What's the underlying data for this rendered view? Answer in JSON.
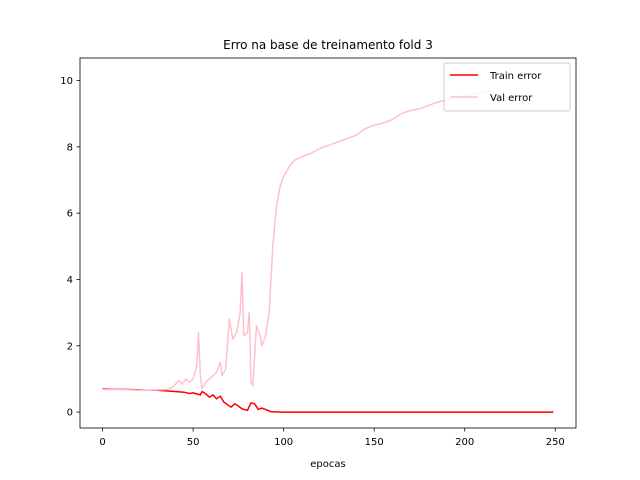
{
  "chart_data": {
    "type": "line",
    "title": "Erro na base de treinamento fold 3",
    "xlabel": "epocas",
    "ylabel": "",
    "xlim": [
      -12.45,
      261.45
    ],
    "ylim": [
      -0.48,
      10.68
    ],
    "xticks": [
      0,
      50,
      100,
      150,
      200,
      250
    ],
    "yticks": [
      0,
      2,
      4,
      6,
      8,
      10
    ],
    "grid": false,
    "legend_position": "top-right",
    "series": [
      {
        "name": "Train error",
        "color": "#ff0000",
        "points": [
          [
            0,
            0.7
          ],
          [
            5,
            0.69
          ],
          [
            10,
            0.69
          ],
          [
            15,
            0.68
          ],
          [
            20,
            0.67
          ],
          [
            25,
            0.66
          ],
          [
            30,
            0.66
          ],
          [
            35,
            0.64
          ],
          [
            40,
            0.62
          ],
          [
            45,
            0.6
          ],
          [
            48,
            0.56
          ],
          [
            50,
            0.58
          ],
          [
            52,
            0.55
          ],
          [
            54,
            0.52
          ],
          [
            55,
            0.62
          ],
          [
            57,
            0.55
          ],
          [
            59,
            0.45
          ],
          [
            61,
            0.52
          ],
          [
            63,
            0.4
          ],
          [
            65,
            0.48
          ],
          [
            67,
            0.3
          ],
          [
            69,
            0.22
          ],
          [
            71,
            0.15
          ],
          [
            73,
            0.25
          ],
          [
            75,
            0.18
          ],
          [
            77,
            0.1
          ],
          [
            80,
            0.05
          ],
          [
            82,
            0.28
          ],
          [
            84,
            0.25
          ],
          [
            86,
            0.08
          ],
          [
            88,
            0.12
          ],
          [
            90,
            0.08
          ],
          [
            93,
            0.01
          ],
          [
            100,
            0.0
          ],
          [
            150,
            0.0
          ],
          [
            200,
            0.0
          ],
          [
            249,
            0.0
          ]
        ]
      },
      {
        "name": "Val error",
        "color": "#ffc0cb",
        "points": [
          [
            0,
            0.68
          ],
          [
            5,
            0.68
          ],
          [
            10,
            0.68
          ],
          [
            15,
            0.67
          ],
          [
            20,
            0.66
          ],
          [
            25,
            0.66
          ],
          [
            30,
            0.67
          ],
          [
            35,
            0.68
          ],
          [
            38,
            0.72
          ],
          [
            40,
            0.82
          ],
          [
            42,
            0.95
          ],
          [
            44,
            0.85
          ],
          [
            46,
            1.0
          ],
          [
            48,
            0.9
          ],
          [
            50,
            1.0
          ],
          [
            52,
            1.4
          ],
          [
            53,
            2.4
          ],
          [
            54,
            1.1
          ],
          [
            55,
            0.7
          ],
          [
            57,
            0.9
          ],
          [
            59,
            1.0
          ],
          [
            61,
            1.1
          ],
          [
            63,
            1.2
          ],
          [
            65,
            1.5
          ],
          [
            66,
            1.1
          ],
          [
            68,
            1.3
          ],
          [
            70,
            2.8
          ],
          [
            72,
            2.2
          ],
          [
            74,
            2.4
          ],
          [
            76,
            3.0
          ],
          [
            77,
            4.2
          ],
          [
            78,
            2.3
          ],
          [
            80,
            2.4
          ],
          [
            81,
            3.0
          ],
          [
            82,
            0.9
          ],
          [
            83,
            0.8
          ],
          [
            85,
            2.6
          ],
          [
            87,
            2.3
          ],
          [
            88,
            2.0
          ],
          [
            90,
            2.3
          ],
          [
            92,
            3.0
          ],
          [
            94,
            5.0
          ],
          [
            96,
            6.2
          ],
          [
            98,
            6.8
          ],
          [
            100,
            7.1
          ],
          [
            103,
            7.4
          ],
          [
            106,
            7.6
          ],
          [
            110,
            7.7
          ],
          [
            115,
            7.8
          ],
          [
            120,
            7.95
          ],
          [
            125,
            8.05
          ],
          [
            130,
            8.15
          ],
          [
            135,
            8.25
          ],
          [
            140,
            8.35
          ],
          [
            145,
            8.55
          ],
          [
            150,
            8.65
          ],
          [
            155,
            8.72
          ],
          [
            160,
            8.82
          ],
          [
            165,
            9.0
          ],
          [
            170,
            9.1
          ],
          [
            175,
            9.15
          ],
          [
            180,
            9.25
          ],
          [
            185,
            9.35
          ],
          [
            190,
            9.42
          ],
          [
            195,
            9.5
          ],
          [
            200,
            9.55
          ],
          [
            205,
            9.6
          ],
          [
            210,
            9.65
          ],
          [
            215,
            9.7
          ]
        ]
      }
    ]
  }
}
